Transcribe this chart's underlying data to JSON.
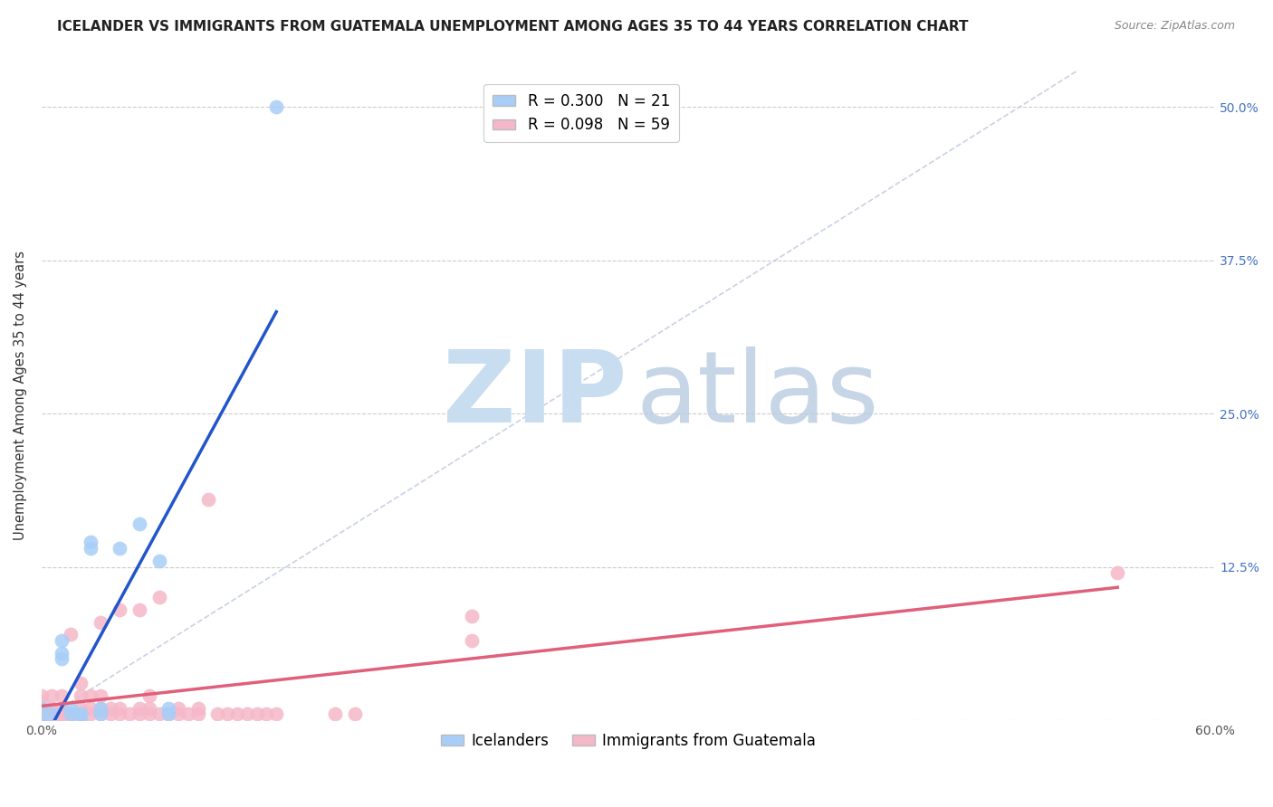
{
  "title": "ICELANDER VS IMMIGRANTS FROM GUATEMALA UNEMPLOYMENT AMONG AGES 35 TO 44 YEARS CORRELATION CHART",
  "source": "Source: ZipAtlas.com",
  "ylabel": "Unemployment Among Ages 35 to 44 years",
  "xlim": [
    0.0,
    0.6
  ],
  "ylim": [
    0.0,
    0.53
  ],
  "ytick_positions": [
    0.0,
    0.125,
    0.25,
    0.375,
    0.5
  ],
  "ytick_labels_right": [
    "",
    "12.5%",
    "25.0%",
    "37.5%",
    "50.0%"
  ],
  "grid_color": "#cccccc",
  "background_color": "#ffffff",
  "series1_name": "Icelanders",
  "series1_color": "#a8cef7",
  "series1_edge_color": "#a8cef7",
  "series1_line_color": "#2255cc",
  "series1_R": "0.300",
  "series1_N": "21",
  "series2_name": "Immigrants from Guatemala",
  "series2_color": "#f5b8c8",
  "series2_edge_color": "#f5b8c8",
  "series2_line_color": "#e0607a",
  "series2_R": "0.098",
  "series2_N": "59",
  "diagonal_color": "#c5cce0",
  "series1_x": [
    0.0,
    0.0,
    0.005,
    0.01,
    0.01,
    0.01,
    0.015,
    0.015,
    0.02,
    0.02,
    0.02,
    0.025,
    0.025,
    0.03,
    0.03,
    0.04,
    0.05,
    0.06,
    0.065,
    0.065,
    0.12
  ],
  "series1_y": [
    0.0,
    0.01,
    0.005,
    0.05,
    0.055,
    0.065,
    0.005,
    0.01,
    0.005,
    0.0,
    0.005,
    0.14,
    0.145,
    0.005,
    0.01,
    0.14,
    0.16,
    0.13,
    0.01,
    0.005,
    0.5
  ],
  "series2_x": [
    0.0,
    0.0,
    0.0,
    0.0,
    0.0,
    0.005,
    0.005,
    0.005,
    0.005,
    0.01,
    0.01,
    0.01,
    0.01,
    0.015,
    0.015,
    0.02,
    0.02,
    0.02,
    0.02,
    0.025,
    0.025,
    0.025,
    0.03,
    0.03,
    0.03,
    0.03,
    0.035,
    0.035,
    0.04,
    0.04,
    0.04,
    0.045,
    0.05,
    0.05,
    0.05,
    0.055,
    0.055,
    0.055,
    0.06,
    0.06,
    0.065,
    0.07,
    0.07,
    0.075,
    0.08,
    0.08,
    0.085,
    0.09,
    0.095,
    0.1,
    0.105,
    0.11,
    0.115,
    0.12,
    0.15,
    0.16,
    0.22,
    0.22,
    0.55
  ],
  "series2_y": [
    0.0,
    0.005,
    0.01,
    0.015,
    0.02,
    0.0,
    0.005,
    0.01,
    0.02,
    0.0,
    0.005,
    0.01,
    0.02,
    0.005,
    0.07,
    0.005,
    0.01,
    0.02,
    0.03,
    0.005,
    0.01,
    0.02,
    0.005,
    0.01,
    0.02,
    0.08,
    0.005,
    0.01,
    0.005,
    0.01,
    0.09,
    0.005,
    0.005,
    0.01,
    0.09,
    0.005,
    0.01,
    0.02,
    0.005,
    0.1,
    0.005,
    0.005,
    0.01,
    0.005,
    0.005,
    0.01,
    0.18,
    0.005,
    0.005,
    0.005,
    0.005,
    0.005,
    0.005,
    0.005,
    0.005,
    0.005,
    0.065,
    0.085,
    0.12
  ],
  "title_fontsize": 11,
  "axis_label_fontsize": 10.5,
  "tick_fontsize": 10,
  "legend_fontsize": 12
}
